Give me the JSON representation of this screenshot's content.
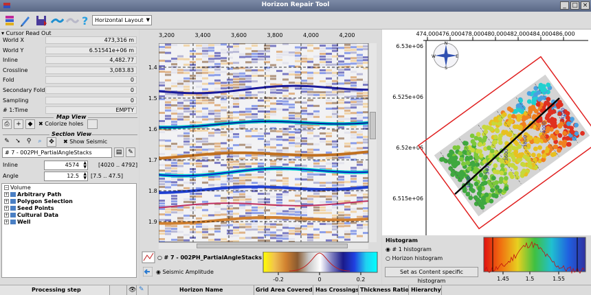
{
  "window": {
    "title": "Horizon Repair Tool"
  },
  "toolbar": {
    "layout_value": "Horizontal Layout"
  },
  "cursor": {
    "header": "Cursor Read Out",
    "fields": [
      {
        "label": "World X",
        "value": "473,316 m"
      },
      {
        "label": "World Y",
        "value": "6.51541e+06 m"
      },
      {
        "label": "Inline",
        "value": "4,482.77"
      },
      {
        "label": "Crossline",
        "value": "3,083.83"
      },
      {
        "label": "Fold",
        "value": "0"
      },
      {
        "label": "Secondary Fold",
        "value": "0"
      },
      {
        "label": "Sampling",
        "value": "0"
      },
      {
        "label": "# 1:Time",
        "value": "EMPTY"
      }
    ]
  },
  "map_view": {
    "title": "Map View",
    "colorize_label": "Colorize holes"
  },
  "section_view": {
    "title": "Section View",
    "show_seismic_label": "Show Seismic",
    "dataset": "# 7 - 002PH_PartialAngleStacks",
    "inline_label": "Inline",
    "inline_value": "4574",
    "inline_range": "[4020 .. 4792]",
    "angle_label": "Angle",
    "angle_value": "12.5",
    "angle_range": "[7.5 .. 47.5]"
  },
  "tree": {
    "root": "Volume",
    "items": [
      "Arbitrary Path",
      "Polygon Selection",
      "Seed Points",
      "Cultural Data",
      "Well"
    ]
  },
  "seismic": {
    "x_ticks": [
      "3,200",
      "3,400",
      "3,600",
      "3,800",
      "4,000",
      "4,200"
    ],
    "y_ticks": [
      "1.4",
      "1.5",
      "1.6",
      "1.7",
      "1.8",
      "1.9"
    ]
  },
  "map": {
    "x_ticks": [
      "474,000",
      "476,000",
      "478,000",
      "480,000",
      "482,000",
      "484,000",
      "486,000"
    ],
    "y_ticks": [
      "6.53e+06",
      "6.525e+06",
      "6.52e+06",
      "6.515e+06"
    ],
    "contour_labels": [
      "3200",
      "3400",
      "3600",
      "3800",
      "4000",
      "4200"
    ],
    "compass": {
      "n": "N",
      "s": "S",
      "e": "E",
      "w": "W"
    }
  },
  "colorbar": {
    "dataset_label": "# 7 - 002PH_PartialAngleStacks",
    "amplitude_label": "Seismic Amplitude",
    "ticks": [
      "-0.2",
      "0",
      "0.2"
    ]
  },
  "histogram": {
    "title": "Histogram",
    "option1": "# 1 histogram",
    "option2": "Horizon histogram",
    "button": "Set as Content specific histogram",
    "ticks": [
      "1.45",
      "1.5",
      "1.55"
    ]
  },
  "bottom": {
    "processing_label": "Processing step",
    "columns": [
      "Horizon Name",
      "Grid Area Covered",
      "Has Crossings",
      "Thickness Ratio",
      "Hierarchy"
    ]
  },
  "colors": {
    "titlebar": "#6a7898",
    "map_frame": "#e02020",
    "well_path": "#000000"
  }
}
